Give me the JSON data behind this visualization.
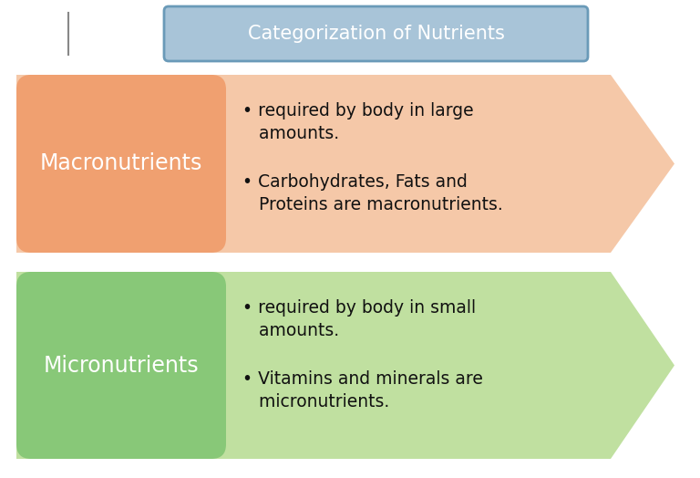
{
  "title": "Categorization of Nutrients",
  "title_box_color": "#a8c4d8",
  "title_text_color": "white",
  "title_border_color": "#6a9ab8",
  "background_color": "#ffffff",
  "macro_label": "Macronutrients",
  "macro_box_color": "#f0a070",
  "macro_arrow_color": "#f5c8a8",
  "macro_text_color": "white",
  "macro_bullets": [
    "required by body in large\namounts.",
    "Carbohydrates, Fats and\nProteins are macronutrients."
  ],
  "micro_label": "Micronutrients",
  "micro_box_color": "#88c878",
  "micro_arrow_color": "#c0e0a0",
  "micro_text_color": "white",
  "micro_bullets": [
    "required by body in small\namounts.",
    "Vitamins and minerals are\nmicronutrients."
  ],
  "bullet_text_color": "#111111",
  "figsize": [
    7.68,
    5.24
  ],
  "dpi": 100
}
